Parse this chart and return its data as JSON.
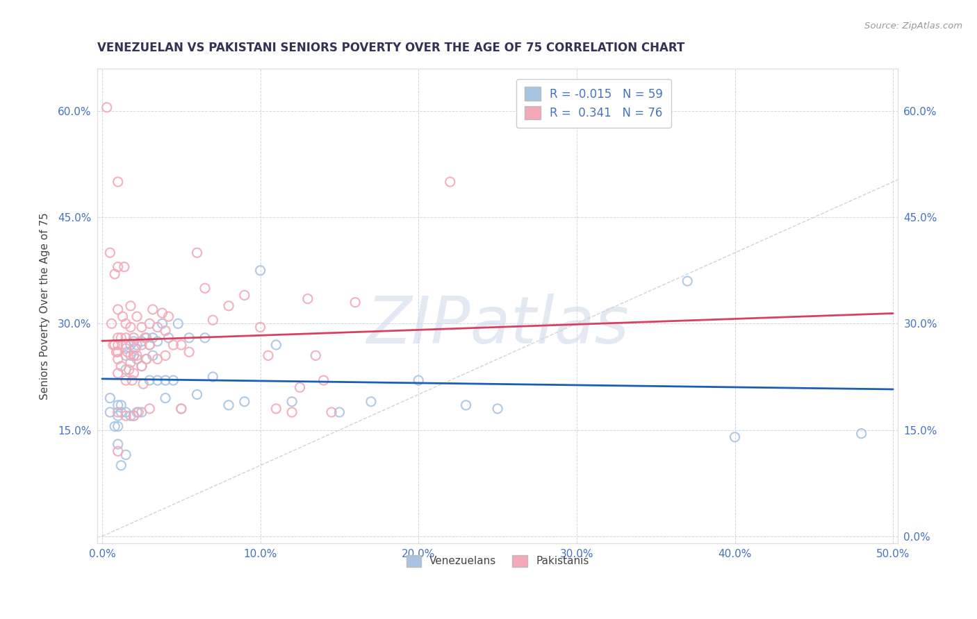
{
  "title": "VENEZUELAN VS PAKISTANI SENIORS POVERTY OVER THE AGE OF 75 CORRELATION CHART",
  "source": "Source: ZipAtlas.com",
  "ylabel": "Seniors Poverty Over the Age of 75",
  "xlim": [
    -0.003,
    0.503
  ],
  "ylim": [
    -0.01,
    0.66
  ],
  "xticks": [
    0.0,
    0.1,
    0.2,
    0.3,
    0.4,
    0.5
  ],
  "yticks": [
    0.0,
    0.15,
    0.3,
    0.45,
    0.6
  ],
  "xticklabels": [
    "0.0%",
    "10.0%",
    "20.0%",
    "30.0%",
    "40.0%",
    "50.0%"
  ],
  "yticklabels": [
    "0.0%",
    "15.0%",
    "30.0%",
    "45.0%",
    "60.0%"
  ],
  "venezuelan_R": -0.015,
  "venezuelan_N": 59,
  "pakistani_R": 0.341,
  "pakistani_N": 76,
  "venezuelan_color": "#a8c4e0",
  "pakistani_color": "#f4a8b8",
  "venezuelan_line_color": "#1a5fb4",
  "pakistani_line_color": "#d94060",
  "diagonal_color": "#c8c8c8",
  "watermark": "ZIPatlas",
  "venezuelan_x": [
    0.005,
    0.005,
    0.008,
    0.01,
    0.01,
    0.01,
    0.01,
    0.012,
    0.012,
    0.012,
    0.015,
    0.015,
    0.015,
    0.015,
    0.015,
    0.018,
    0.018,
    0.018,
    0.02,
    0.02,
    0.02,
    0.022,
    0.022,
    0.022,
    0.025,
    0.025,
    0.025,
    0.028,
    0.028,
    0.03,
    0.03,
    0.032,
    0.032,
    0.035,
    0.035,
    0.038,
    0.04,
    0.04,
    0.042,
    0.045,
    0.048,
    0.05,
    0.055,
    0.06,
    0.065,
    0.07,
    0.08,
    0.09,
    0.1,
    0.11,
    0.12,
    0.15,
    0.17,
    0.2,
    0.23,
    0.25,
    0.37,
    0.4,
    0.48
  ],
  "venezuelan_y": [
    0.175,
    0.195,
    0.155,
    0.185,
    0.17,
    0.155,
    0.13,
    0.185,
    0.175,
    0.1,
    0.27,
    0.255,
    0.235,
    0.175,
    0.115,
    0.27,
    0.255,
    0.17,
    0.275,
    0.255,
    0.17,
    0.27,
    0.25,
    0.175,
    0.275,
    0.24,
    0.175,
    0.28,
    0.25,
    0.27,
    0.22,
    0.28,
    0.255,
    0.275,
    0.22,
    0.3,
    0.22,
    0.195,
    0.28,
    0.22,
    0.3,
    0.18,
    0.28,
    0.2,
    0.28,
    0.225,
    0.185,
    0.19,
    0.375,
    0.27,
    0.19,
    0.175,
    0.19,
    0.22,
    0.185,
    0.18,
    0.36,
    0.14,
    0.145
  ],
  "pakistani_x": [
    0.003,
    0.005,
    0.006,
    0.007,
    0.008,
    0.008,
    0.009,
    0.01,
    0.01,
    0.01,
    0.01,
    0.01,
    0.01,
    0.01,
    0.01,
    0.01,
    0.01,
    0.012,
    0.012,
    0.013,
    0.014,
    0.015,
    0.015,
    0.015,
    0.015,
    0.015,
    0.016,
    0.017,
    0.018,
    0.018,
    0.018,
    0.019,
    0.02,
    0.02,
    0.02,
    0.02,
    0.021,
    0.022,
    0.022,
    0.023,
    0.025,
    0.025,
    0.025,
    0.026,
    0.027,
    0.028,
    0.03,
    0.03,
    0.03,
    0.032,
    0.035,
    0.035,
    0.038,
    0.04,
    0.04,
    0.042,
    0.045,
    0.05,
    0.05,
    0.055,
    0.06,
    0.065,
    0.07,
    0.08,
    0.09,
    0.1,
    0.105,
    0.11,
    0.12,
    0.125,
    0.13,
    0.135,
    0.14,
    0.145,
    0.16,
    0.22
  ],
  "pakistani_y": [
    0.605,
    0.4,
    0.3,
    0.27,
    0.37,
    0.27,
    0.26,
    0.5,
    0.38,
    0.32,
    0.28,
    0.27,
    0.26,
    0.25,
    0.23,
    0.175,
    0.12,
    0.28,
    0.24,
    0.31,
    0.38,
    0.3,
    0.28,
    0.265,
    0.22,
    0.17,
    0.26,
    0.235,
    0.325,
    0.295,
    0.245,
    0.22,
    0.28,
    0.255,
    0.23,
    0.17,
    0.265,
    0.31,
    0.255,
    0.175,
    0.295,
    0.27,
    0.24,
    0.215,
    0.28,
    0.25,
    0.3,
    0.27,
    0.18,
    0.32,
    0.295,
    0.25,
    0.315,
    0.29,
    0.255,
    0.31,
    0.27,
    0.27,
    0.18,
    0.26,
    0.4,
    0.35,
    0.305,
    0.325,
    0.34,
    0.295,
    0.255,
    0.18,
    0.175,
    0.21,
    0.335,
    0.255,
    0.22,
    0.175,
    0.33,
    0.5
  ]
}
